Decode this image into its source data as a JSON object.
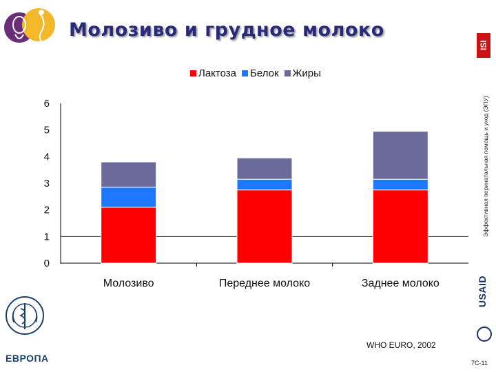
{
  "slide": {
    "title": "Молозиво и грудное молоко",
    "side_caption": "Эффективная перинатальная помощь и уход (ЭПУ)",
    "isi_logo_text": "ISI",
    "usaid_text": "USAID",
    "europa_text": "ЕВРОПА",
    "source": "WHO EURO, 2002",
    "slide_number": "7C-11"
  },
  "chart_data": {
    "type": "bar",
    "stacked": true,
    "categories": [
      "Молозиво",
      "Переднее молоко",
      "Заднее молоко"
    ],
    "series": [
      {
        "name": "Лактоза",
        "color": "#ff0000",
        "values": [
          2.1,
          2.75,
          2.75
        ]
      },
      {
        "name": "Белок",
        "color": "#1e78ff",
        "values": [
          0.75,
          0.4,
          0.4
        ]
      },
      {
        "name": "Жиры",
        "color": "#6b6b9b",
        "values": [
          0.95,
          0.8,
          1.8
        ]
      }
    ],
    "ylim": [
      0,
      6
    ],
    "yticks": [
      "0",
      "1",
      "2",
      "3",
      "4",
      "5",
      "6"
    ],
    "legend": "top-center",
    "grid": false,
    "reference_line": 1,
    "title": "",
    "xlabel": "",
    "ylabel": ""
  }
}
